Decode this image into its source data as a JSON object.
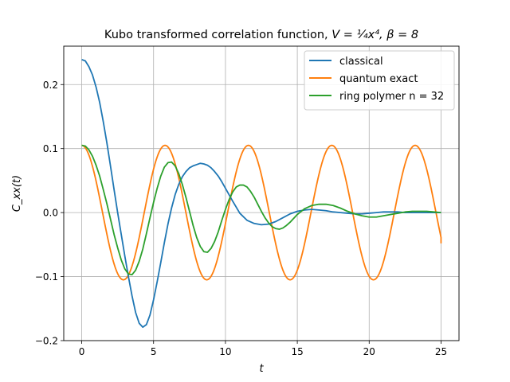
{
  "chart_data": {
    "type": "line",
    "title_prefix": "Kubo transformed correlation function, ",
    "title_math": "V = ¼x⁴, β = 8",
    "xlabel": "t",
    "ylabel": "C_xx(t)",
    "xlim": [
      -1.25,
      26.25
    ],
    "ylim": [
      -0.2,
      0.26
    ],
    "xticks": [
      0,
      5,
      10,
      15,
      20,
      25
    ],
    "yticks": [
      -0.2,
      -0.1,
      0.0,
      0.1,
      0.2
    ],
    "xtick_labels": [
      "0",
      "5",
      "10",
      "15",
      "20",
      "25"
    ],
    "ytick_labels": [
      "−0.2",
      "−0.1",
      "0.0",
      "0.1",
      "0.2"
    ],
    "grid": true,
    "legend_position": "top-right",
    "series": [
      {
        "name": "classical",
        "color": "#1f77b4",
        "points": [
          [
            0,
            0.239
          ],
          [
            0.25,
            0.237
          ],
          [
            0.5,
            0.228
          ],
          [
            0.75,
            0.215
          ],
          [
            1.0,
            0.196
          ],
          [
            1.25,
            0.172
          ],
          [
            1.5,
            0.142
          ],
          [
            1.75,
            0.109
          ],
          [
            2.0,
            0.073
          ],
          [
            2.25,
            0.036
          ],
          [
            2.5,
            0.0
          ],
          [
            2.75,
            -0.034
          ],
          [
            3.0,
            -0.068
          ],
          [
            3.25,
            -0.1
          ],
          [
            3.5,
            -0.13
          ],
          [
            3.75,
            -0.156
          ],
          [
            4.0,
            -0.173
          ],
          [
            4.25,
            -0.179
          ],
          [
            4.5,
            -0.175
          ],
          [
            4.75,
            -0.16
          ],
          [
            5.0,
            -0.136
          ],
          [
            5.25,
            -0.108
          ],
          [
            5.5,
            -0.078
          ],
          [
            5.75,
            -0.047
          ],
          [
            6.0,
            -0.018
          ],
          [
            6.25,
            0.007
          ],
          [
            6.5,
            0.028
          ],
          [
            6.75,
            0.044
          ],
          [
            7.0,
            0.056
          ],
          [
            7.25,
            0.064
          ],
          [
            7.5,
            0.07
          ],
          [
            7.75,
            0.073
          ],
          [
            8.0,
            0.075
          ],
          [
            8.25,
            0.077
          ],
          [
            8.5,
            0.076
          ],
          [
            8.75,
            0.074
          ],
          [
            9.0,
            0.07
          ],
          [
            9.25,
            0.064
          ],
          [
            9.5,
            0.057
          ],
          [
            9.75,
            0.048
          ],
          [
            10.0,
            0.038
          ],
          [
            10.5,
            0.018
          ],
          [
            11.0,
            -0.001
          ],
          [
            11.5,
            -0.012
          ],
          [
            12.0,
            -0.017
          ],
          [
            12.5,
            -0.019
          ],
          [
            13.0,
            -0.018
          ],
          [
            13.5,
            -0.014
          ],
          [
            14.0,
            -0.008
          ],
          [
            14.5,
            -0.002
          ],
          [
            15.0,
            0.002
          ],
          [
            15.5,
            0.004
          ],
          [
            16.0,
            0.005
          ],
          [
            16.5,
            0.004
          ],
          [
            17.0,
            0.003
          ],
          [
            17.5,
            0.001
          ],
          [
            18.0,
            0.0
          ],
          [
            18.5,
            -0.001
          ],
          [
            19.0,
            -0.002
          ],
          [
            19.5,
            -0.002
          ],
          [
            20.0,
            -0.001
          ],
          [
            20.5,
            0.0
          ],
          [
            21.0,
            0.001
          ],
          [
            21.5,
            0.001
          ],
          [
            22.0,
            0.001
          ],
          [
            22.5,
            0.0
          ],
          [
            23.0,
            0.0
          ],
          [
            23.5,
            0.0
          ],
          [
            24.0,
            0.0
          ],
          [
            24.5,
            0.0
          ],
          [
            25.0,
            0.0
          ]
        ]
      },
      {
        "name": "quantum exact",
        "color": "#ff7f0e",
        "function": "cosine",
        "amplitude": 0.105,
        "period": 5.8,
        "x_range": [
          0,
          25
        ],
        "end_value": -0.048
      },
      {
        "name": "ring polymer n = 32",
        "color": "#2ca02c",
        "points": [
          [
            0,
            0.105
          ],
          [
            0.25,
            0.104
          ],
          [
            0.5,
            0.098
          ],
          [
            0.75,
            0.088
          ],
          [
            1.0,
            0.074
          ],
          [
            1.25,
            0.057
          ],
          [
            1.5,
            0.036
          ],
          [
            1.75,
            0.014
          ],
          [
            2.0,
            -0.01
          ],
          [
            2.25,
            -0.034
          ],
          [
            2.5,
            -0.055
          ],
          [
            2.75,
            -0.074
          ],
          [
            3.0,
            -0.088
          ],
          [
            3.25,
            -0.096
          ],
          [
            3.5,
            -0.097
          ],
          [
            3.75,
            -0.09
          ],
          [
            4.0,
            -0.076
          ],
          [
            4.25,
            -0.057
          ],
          [
            4.5,
            -0.033
          ],
          [
            4.75,
            -0.008
          ],
          [
            5.0,
            0.016
          ],
          [
            5.25,
            0.038
          ],
          [
            5.5,
            0.057
          ],
          [
            5.75,
            0.071
          ],
          [
            6.0,
            0.078
          ],
          [
            6.25,
            0.079
          ],
          [
            6.5,
            0.073
          ],
          [
            6.75,
            0.061
          ],
          [
            7.0,
            0.044
          ],
          [
            7.25,
            0.024
          ],
          [
            7.5,
            0.002
          ],
          [
            7.75,
            -0.02
          ],
          [
            8.0,
            -0.039
          ],
          [
            8.25,
            -0.053
          ],
          [
            8.5,
            -0.061
          ],
          [
            8.75,
            -0.062
          ],
          [
            9.0,
            -0.056
          ],
          [
            9.25,
            -0.045
          ],
          [
            9.5,
            -0.03
          ],
          [
            9.75,
            -0.012
          ],
          [
            10.0,
            0.005
          ],
          [
            10.25,
            0.02
          ],
          [
            10.5,
            0.032
          ],
          [
            10.75,
            0.04
          ],
          [
            11.0,
            0.043
          ],
          [
            11.25,
            0.043
          ],
          [
            11.5,
            0.04
          ],
          [
            11.75,
            0.033
          ],
          [
            12.0,
            0.024
          ],
          [
            12.25,
            0.013
          ],
          [
            12.5,
            0.002
          ],
          [
            12.75,
            -0.008
          ],
          [
            13.0,
            -0.016
          ],
          [
            13.25,
            -0.022
          ],
          [
            13.5,
            -0.025
          ],
          [
            13.75,
            -0.026
          ],
          [
            14.0,
            -0.024
          ],
          [
            14.25,
            -0.02
          ],
          [
            14.5,
            -0.015
          ],
          [
            14.75,
            -0.009
          ],
          [
            15.0,
            -0.003
          ],
          [
            15.5,
            0.006
          ],
          [
            16.0,
            0.011
          ],
          [
            16.5,
            0.013
          ],
          [
            17.0,
            0.013
          ],
          [
            17.5,
            0.011
          ],
          [
            18.0,
            0.007
          ],
          [
            18.5,
            0.002
          ],
          [
            19.0,
            -0.002
          ],
          [
            19.5,
            -0.005
          ],
          [
            20.0,
            -0.007
          ],
          [
            20.5,
            -0.007
          ],
          [
            21.0,
            -0.005
          ],
          [
            21.5,
            -0.003
          ],
          [
            22.0,
            -0.001
          ],
          [
            22.5,
            0.001
          ],
          [
            23.0,
            0.002
          ],
          [
            23.5,
            0.002
          ],
          [
            24.0,
            0.002
          ],
          [
            24.5,
            0.001
          ],
          [
            25.0,
            0.0
          ]
        ]
      }
    ]
  }
}
